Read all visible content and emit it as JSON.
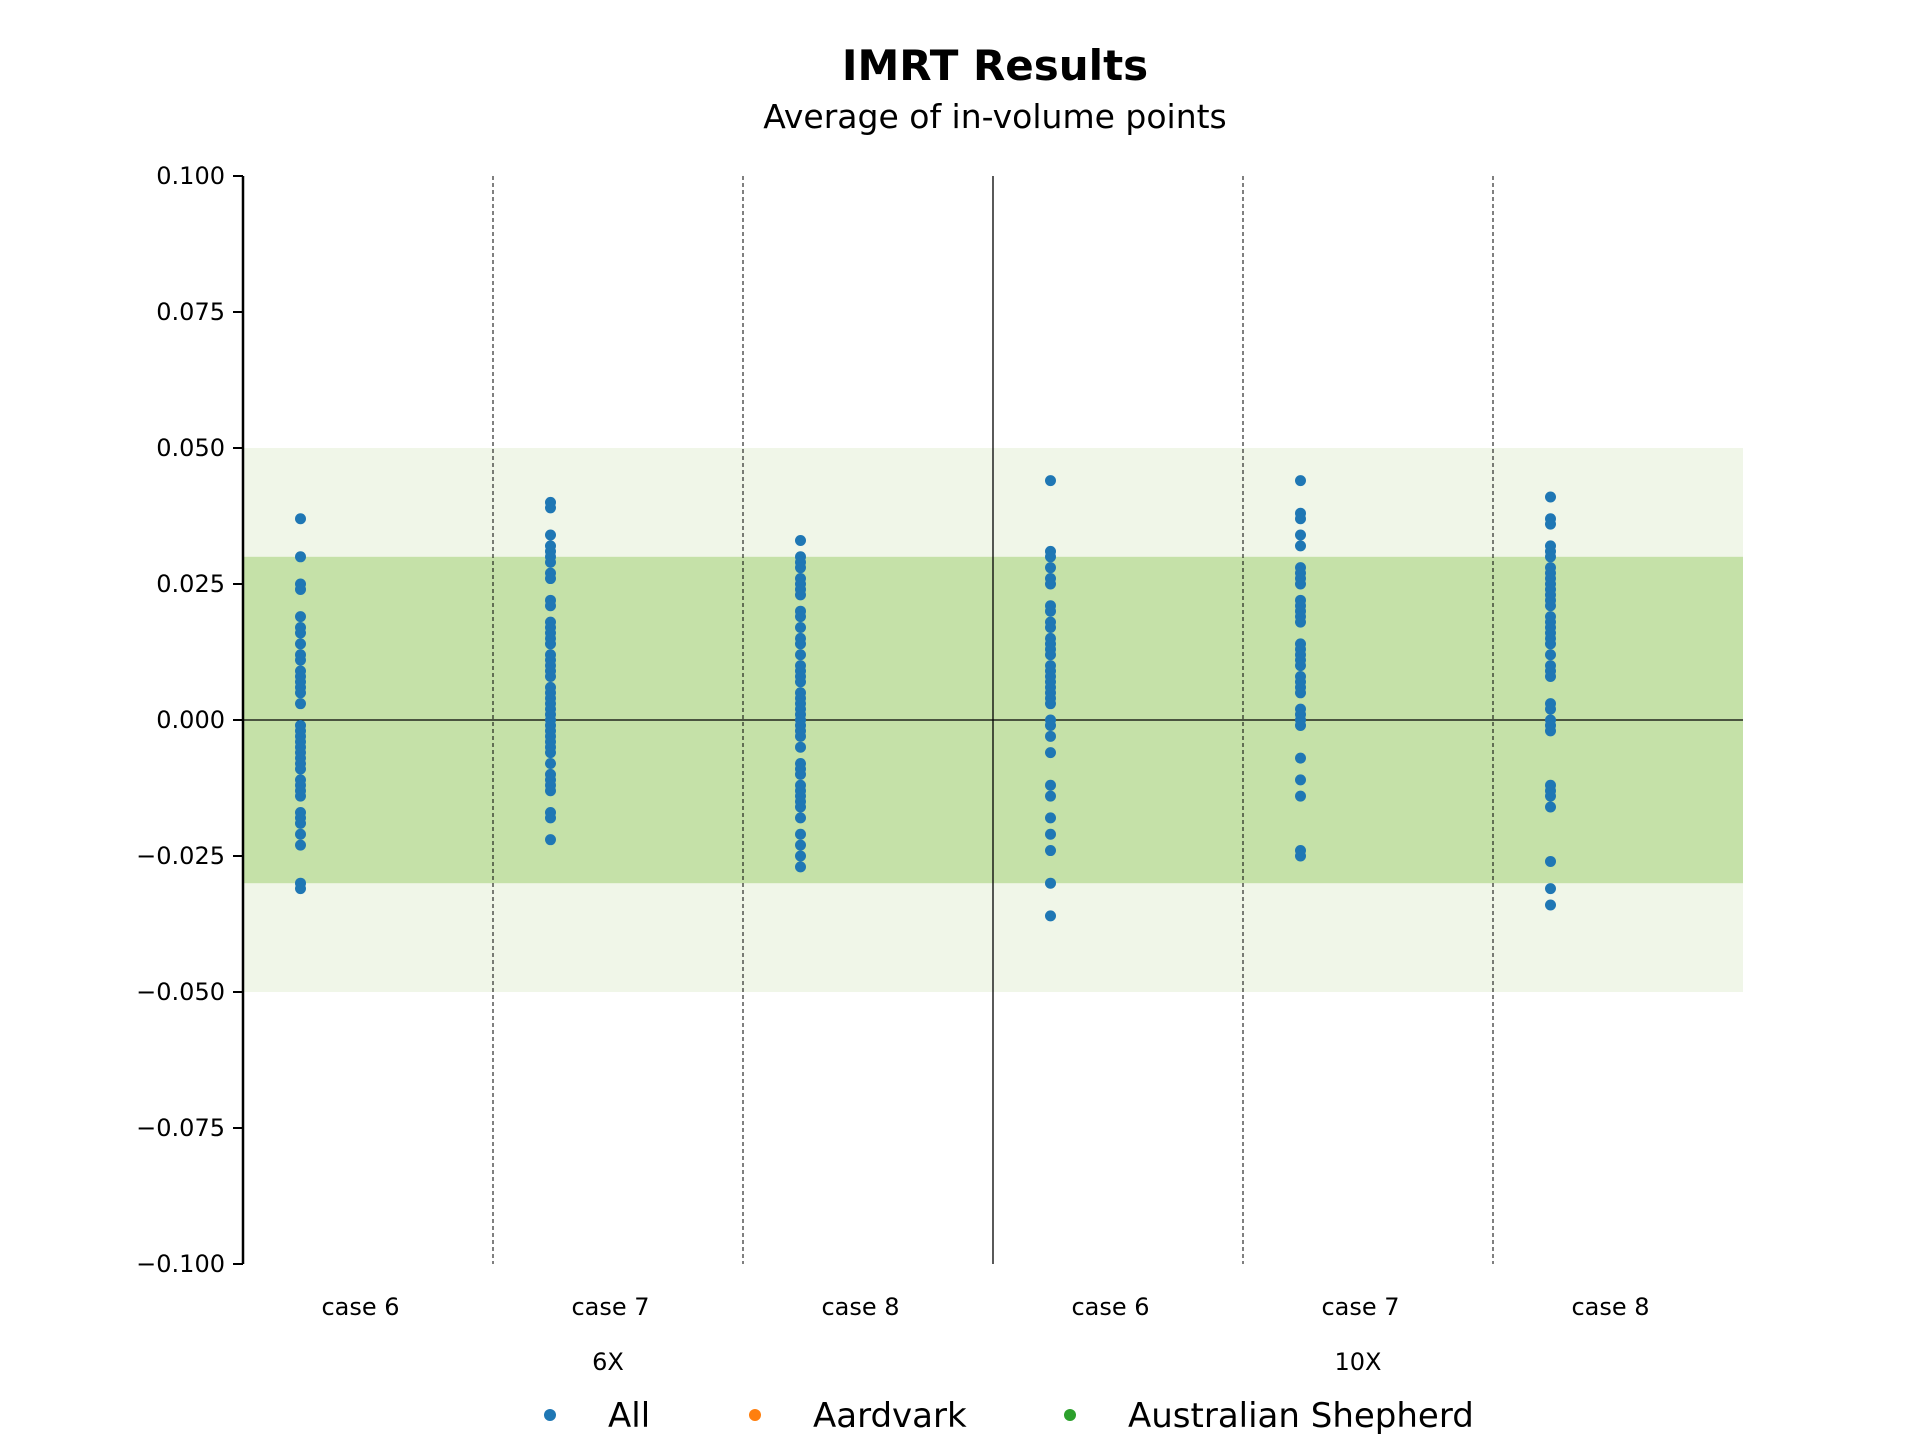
{
  "chart_data": {
    "type": "scatter",
    "title": "IMRT Results",
    "subtitle": "Average of in-volume points",
    "xlabel": "",
    "ylabel": "",
    "ylim": [
      -0.1,
      0.1
    ],
    "yticks": [
      0.1,
      0.075,
      0.05,
      0.025,
      0.0,
      -0.025,
      -0.05,
      -0.075,
      -0.1
    ],
    "ytick_labels": [
      "0.100",
      "0.075",
      "0.050",
      "0.025",
      "0.000",
      "−0.025",
      "−0.050",
      "−0.075",
      "−0.100"
    ],
    "categories": [
      "case 6",
      "case 7",
      "case 8",
      "case 6",
      "case 7",
      "case 8"
    ],
    "groups": [
      {
        "label": "6X",
        "categories": [
          0,
          1,
          2
        ]
      },
      {
        "label": "10X",
        "categories": [
          3,
          4,
          5
        ]
      }
    ],
    "bands": [
      {
        "range": [
          -0.05,
          0.05
        ],
        "color": "#f0f6e8"
      },
      {
        "range": [
          -0.03,
          0.03
        ],
        "color": "#c5e1a8"
      }
    ],
    "reference_line": 0.0,
    "grid": false,
    "legend_position": "bottom-center",
    "legend": [
      {
        "name": "All",
        "color": "#1f77b4"
      },
      {
        "name": "Aardvark",
        "color": "#ff7f0e"
      },
      {
        "name": "Australian Shepherd",
        "color": "#2ca02c"
      }
    ],
    "series": [
      {
        "name": "All",
        "color": "#1f77b4",
        "points": [
          [
            0.037,
            0.03,
            0.025,
            0.024,
            0.019,
            0.017,
            0.016,
            0.014,
            0.012,
            0.011,
            0.009,
            0.008,
            0.007,
            0.006,
            0.005,
            0.003,
            -0.001,
            -0.002,
            -0.003,
            -0.004,
            -0.005,
            -0.006,
            -0.007,
            -0.008,
            -0.009,
            -0.011,
            -0.012,
            -0.013,
            -0.014,
            -0.017,
            -0.018,
            -0.019,
            -0.021,
            -0.023,
            -0.03,
            -0.031
          ],
          [
            0.04,
            0.039,
            0.034,
            0.032,
            0.031,
            0.03,
            0.029,
            0.027,
            0.026,
            0.022,
            0.021,
            0.018,
            0.017,
            0.016,
            0.015,
            0.014,
            0.012,
            0.011,
            0.01,
            0.009,
            0.008,
            0.006,
            0.005,
            0.004,
            0.003,
            0.002,
            0.001,
            0.0,
            -0.001,
            -0.002,
            -0.003,
            -0.004,
            -0.005,
            -0.006,
            -0.008,
            -0.01,
            -0.011,
            -0.012,
            -0.013,
            -0.017,
            -0.018,
            -0.022
          ],
          [
            0.033,
            0.03,
            0.029,
            0.028,
            0.026,
            0.025,
            0.024,
            0.023,
            0.02,
            0.019,
            0.017,
            0.015,
            0.014,
            0.012,
            0.01,
            0.009,
            0.008,
            0.007,
            0.005,
            0.004,
            0.003,
            0.002,
            0.001,
            0.0,
            -0.001,
            -0.002,
            -0.003,
            -0.005,
            -0.008,
            -0.009,
            -0.01,
            -0.012,
            -0.013,
            -0.014,
            -0.015,
            -0.016,
            -0.018,
            -0.021,
            -0.023,
            -0.025,
            -0.027
          ],
          [
            0.044,
            0.031,
            0.03,
            0.028,
            0.026,
            0.025,
            0.021,
            0.02,
            0.018,
            0.017,
            0.015,
            0.014,
            0.013,
            0.012,
            0.01,
            0.009,
            0.008,
            0.007,
            0.006,
            0.005,
            0.004,
            0.003,
            0.0,
            -0.001,
            -0.003,
            -0.006,
            -0.012,
            -0.014,
            -0.018,
            -0.021,
            -0.024,
            -0.03,
            -0.036
          ],
          [
            0.044,
            0.038,
            0.037,
            0.034,
            0.032,
            0.028,
            0.027,
            0.026,
            0.025,
            0.022,
            0.021,
            0.02,
            0.019,
            0.018,
            0.014,
            0.013,
            0.012,
            0.011,
            0.01,
            0.008,
            0.007,
            0.006,
            0.005,
            0.002,
            0.001,
            0.0,
            -0.001,
            -0.007,
            -0.011,
            -0.014,
            -0.024,
            -0.025
          ],
          [
            0.041,
            0.037,
            0.036,
            0.032,
            0.031,
            0.03,
            0.028,
            0.027,
            0.026,
            0.025,
            0.024,
            0.023,
            0.022,
            0.021,
            0.019,
            0.018,
            0.017,
            0.016,
            0.015,
            0.014,
            0.012,
            0.01,
            0.009,
            0.008,
            0.003,
            0.002,
            0.0,
            -0.001,
            -0.002,
            -0.012,
            -0.013,
            -0.014,
            -0.016,
            -0.026,
            -0.031,
            -0.034
          ]
        ]
      }
    ]
  }
}
